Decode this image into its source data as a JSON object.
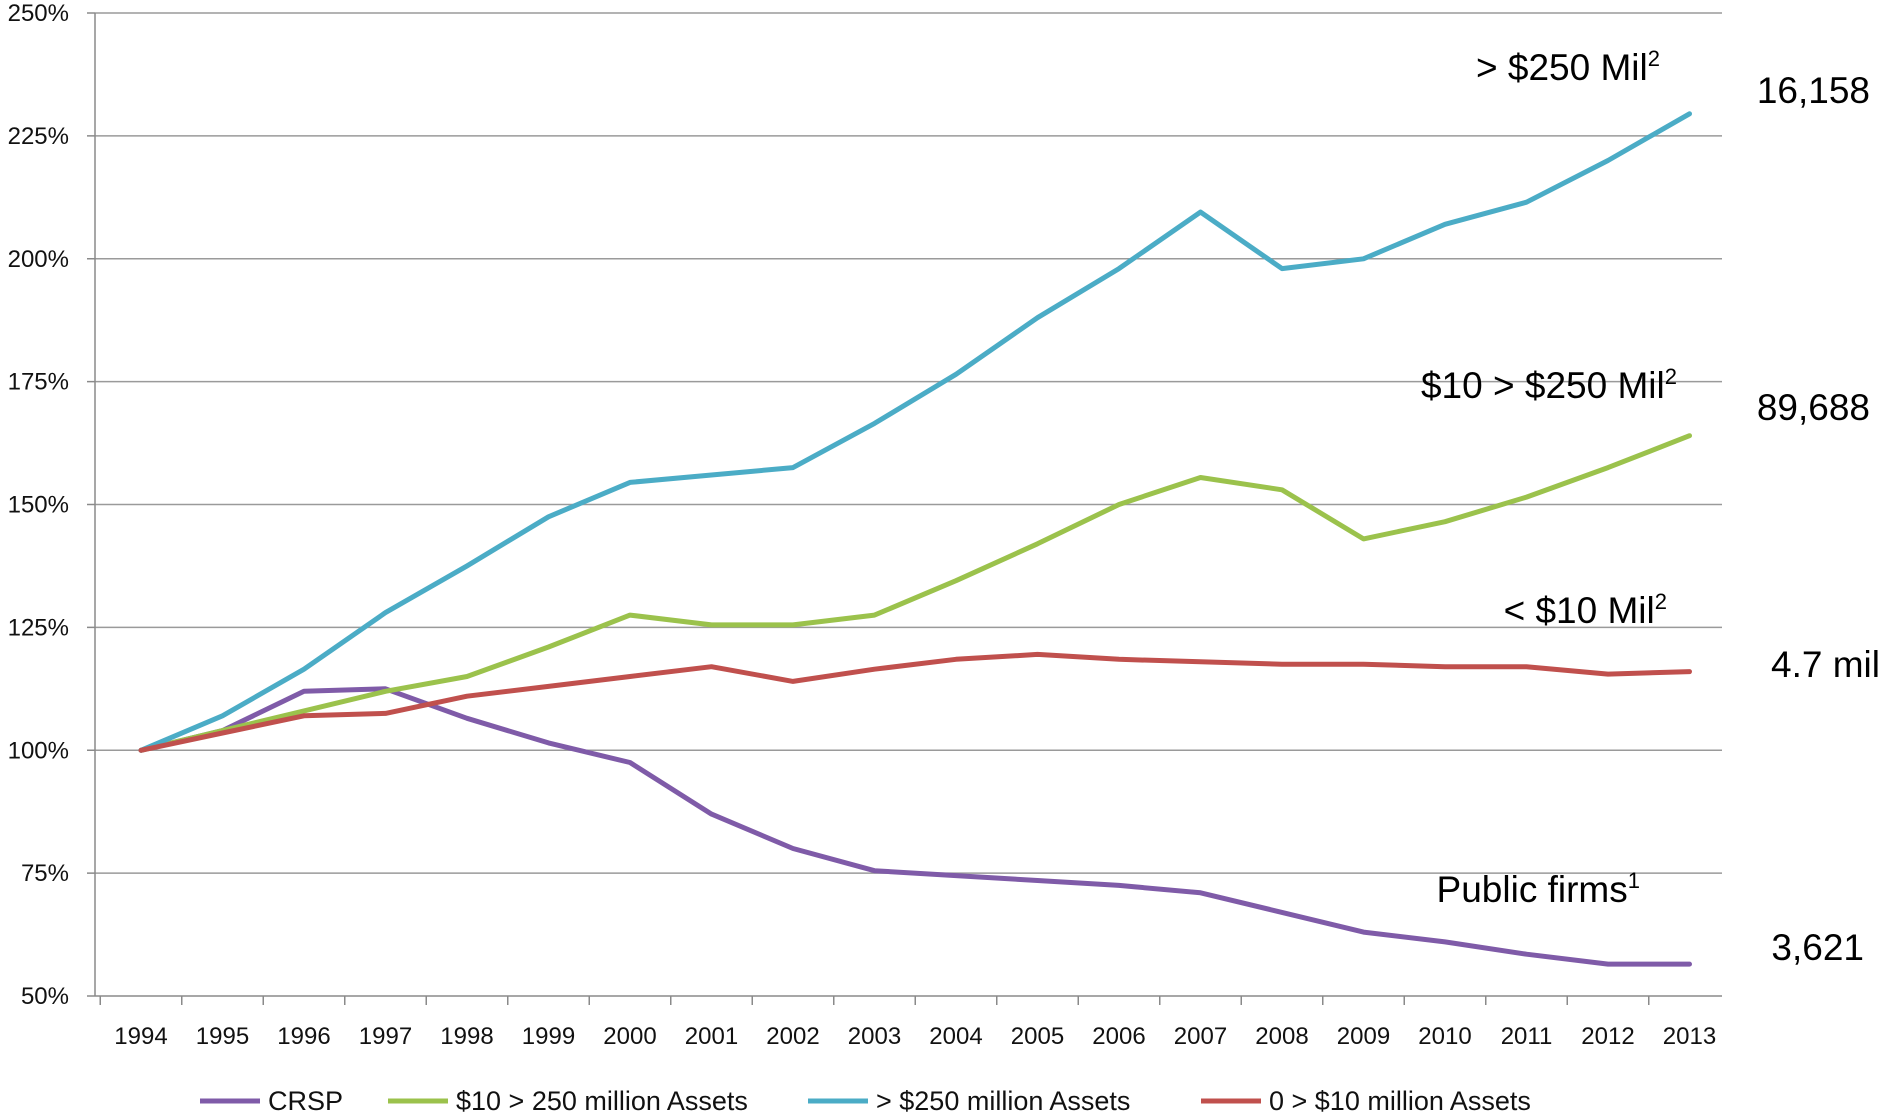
{
  "chart_data": {
    "type": "line",
    "title": "",
    "xlabel": "",
    "ylabel": "",
    "x": [
      1994,
      1995,
      1996,
      1997,
      1998,
      1999,
      2000,
      2001,
      2002,
      2003,
      2004,
      2005,
      2006,
      2007,
      2008,
      2009,
      2010,
      2011,
      2012,
      2013
    ],
    "x_tick_labels": [
      "1994",
      "1995",
      "1996",
      "1997",
      "1998",
      "1999",
      "2000",
      "2001",
      "2002",
      "2003",
      "2004",
      "2005",
      "2006",
      "2007",
      "2008",
      "2009",
      "2010",
      "2011",
      "2012",
      "2013"
    ],
    "ylim": [
      50,
      250
    ],
    "y_ticks": [
      50,
      75,
      100,
      125,
      150,
      175,
      200,
      225,
      250
    ],
    "y_tick_labels": [
      "50%",
      "75%",
      "100%",
      "125%",
      "150%",
      "175%",
      "200%",
      "225%",
      "250%"
    ],
    "grid": true,
    "legend_position": "bottom",
    "series": [
      {
        "name": "CRSP",
        "color": "#7f5ba8",
        "values": [
          100,
          104,
          112,
          112.5,
          106.5,
          101.5,
          97.5,
          87,
          80,
          75.5,
          74.5,
          73.5,
          72.5,
          71,
          67,
          63,
          61,
          58.5,
          56.5,
          56.5
        ]
      },
      {
        "name": "$10 > 250 million Assets",
        "color": "#9bc24c",
        "values": [
          100,
          104,
          108,
          112,
          115,
          121,
          127.5,
          125.5,
          125.5,
          127.5,
          134.5,
          142,
          150,
          155.5,
          153,
          143,
          146.5,
          151.5,
          157.5,
          164
        ]
      },
      {
        "name": "> $250 million Assets",
        "color": "#4bacc6",
        "values": [
          100,
          107,
          116.5,
          128,
          137.5,
          147.5,
          154.5,
          156,
          157.5,
          166.5,
          176.5,
          188,
          198,
          209.5,
          198,
          200,
          207,
          211.5,
          220,
          229.5
        ]
      },
      {
        "name": "0 > $10 million Assets",
        "color": "#c0504d",
        "values": [
          100,
          103.5,
          107,
          107.5,
          111,
          113,
          115,
          117,
          114,
          116.5,
          118.5,
          119.5,
          118.5,
          118,
          117.5,
          117.5,
          117,
          117,
          115.5,
          116
        ]
      }
    ],
    "annotations": [
      {
        "label": "> $250 Mil",
        "sup": "2",
        "count": "16,158"
      },
      {
        "label": "$10 > $250 Mil",
        "sup": "2",
        "count": "89,688"
      },
      {
        "label": "< $10 Mil",
        "sup": "2",
        "count": "4.7 mil"
      },
      {
        "label": "Public firms",
        "sup": "1",
        "count": "3,621"
      }
    ]
  }
}
